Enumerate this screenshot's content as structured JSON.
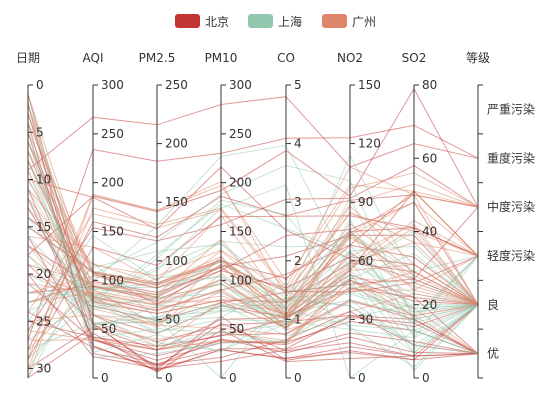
{
  "chart_data": {
    "type": "parallel",
    "legend": {
      "placement": "top-center",
      "items": [
        {
          "name": "北京",
          "color": "#c23531"
        },
        {
          "name": "上海",
          "color": "#91c7ae"
        },
        {
          "name": "广州",
          "color": "#dd8668"
        }
      ]
    },
    "axes": [
      {
        "name": "日期",
        "type": "value",
        "inverse": true,
        "range": [
          0,
          31
        ],
        "ticks": [
          0,
          5,
          10,
          15,
          20,
          25,
          30
        ]
      },
      {
        "name": "AQI",
        "type": "value",
        "range": [
          0,
          300
        ],
        "ticks": [
          0,
          50,
          100,
          150,
          200,
          250,
          300
        ]
      },
      {
        "name": "PM2.5",
        "type": "value",
        "range": [
          0,
          250
        ],
        "ticks": [
          0,
          50,
          100,
          150,
          200,
          250
        ]
      },
      {
        "name": "PM10",
        "type": "value",
        "range": [
          0,
          300
        ],
        "ticks": [
          0,
          50,
          100,
          150,
          200,
          250,
          300
        ]
      },
      {
        "name": "CO",
        "type": "value",
        "range": [
          0,
          5
        ],
        "ticks": [
          0,
          1,
          2,
          3,
          4,
          5
        ]
      },
      {
        "name": "NO2",
        "type": "value",
        "range": [
          0,
          150
        ],
        "ticks": [
          0,
          30,
          60,
          90,
          120,
          150
        ]
      },
      {
        "name": "SO2",
        "type": "value",
        "range": [
          0,
          80
        ],
        "ticks": [
          0,
          20,
          40,
          60,
          80
        ]
      },
      {
        "name": "等级",
        "type": "category",
        "categories": [
          "优",
          "良",
          "轻度污染",
          "中度污染",
          "重度污染",
          "严重污染"
        ]
      }
    ],
    "series": [
      {
        "name": "北京",
        "data": [
          [
            1,
            55,
            9,
            56,
            0.46,
            18,
            6,
            "良"
          ],
          [
            2,
            25,
            11,
            21,
            0.65,
            34,
            9,
            "优"
          ],
          [
            3,
            56,
            7,
            63,
            0.3,
            14,
            5,
            "良"
          ],
          [
            4,
            33,
            7,
            29,
            0.33,
            16,
            6,
            "优"
          ],
          [
            5,
            42,
            24,
            44,
            0.76,
            40,
            16,
            "优"
          ],
          [
            6,
            82,
            58,
            90,
            1.77,
            68,
            33,
            "良"
          ],
          [
            7,
            74,
            49,
            77,
            1.46,
            48,
            27,
            "良"
          ],
          [
            8,
            78,
            55,
            80,
            1.29,
            59,
            29,
            "良"
          ],
          [
            9,
            267,
            216,
            280,
            4.8,
            108,
            64,
            "重度污染"
          ],
          [
            10,
            185,
            127,
            216,
            2.52,
            61,
            27,
            "中度污染"
          ],
          [
            11,
            39,
            19,
            38,
            0.57,
            31,
            15,
            "优"
          ],
          [
            12,
            41,
            11,
            40,
            0.43,
            21,
            7,
            "优"
          ],
          [
            13,
            64,
            38,
            74,
            1.04,
            46,
            22,
            "良"
          ],
          [
            14,
            108,
            79,
            120,
            1.7,
            75,
            41,
            "轻度污染"
          ],
          [
            15,
            108,
            63,
            116,
            1.48,
            44,
            26,
            "轻度污染"
          ],
          [
            16,
            33,
            6,
            29,
            0.34,
            13,
            5,
            "优"
          ],
          [
            17,
            94,
            66,
            110,
            1.54,
            62,
            31,
            "良"
          ],
          [
            18,
            186,
            142,
            192,
            3.88,
            93,
            79,
            "中度污染"
          ],
          [
            19,
            57,
            31,
            54,
            0.96,
            32,
            14,
            "良"
          ],
          [
            20,
            22,
            8,
            17,
            0.48,
            23,
            10,
            "优"
          ],
          [
            21,
            39,
            15,
            36,
            0.61,
            29,
            13,
            "优"
          ],
          [
            22,
            94,
            69,
            114,
            2.08,
            73,
            39,
            "良"
          ],
          [
            23,
            99,
            73,
            110,
            2.43,
            76,
            48,
            "良"
          ],
          [
            24,
            31,
            12,
            30,
            0.5,
            32,
            16,
            "优"
          ],
          [
            25,
            42,
            27,
            43,
            1,
            53,
            22,
            "优"
          ],
          [
            26,
            154,
            117,
            157,
            3.05,
            92,
            58,
            "中度污染"
          ],
          [
            27,
            234,
            185,
            230,
            4.09,
            123,
            69,
            "重度污染"
          ],
          [
            28,
            160,
            120,
            186,
            2.77,
            91,
            50,
            "中度污染"
          ],
          [
            29,
            134,
            96,
            165,
            2.76,
            83,
            41,
            "轻度污染"
          ],
          [
            30,
            52,
            24,
            60,
            1.03,
            50,
            21,
            "良"
          ],
          [
            31,
            46,
            5,
            49,
            0.28,
            10,
            6,
            "优"
          ]
        ]
      },
      {
        "name": "上海",
        "data": [
          [
            1,
            26,
            37,
            27,
            1.163,
            27,
            13,
            "优"
          ],
          [
            2,
            85,
            62,
            71,
            1.195,
            60,
            8,
            "良"
          ],
          [
            3,
            78,
            38,
            74,
            1.363,
            37,
            7,
            "良"
          ],
          [
            4,
            21,
            21,
            36,
            0.634,
            40,
            9,
            "优"
          ],
          [
            5,
            41,
            42,
            46,
            0.915,
            81,
            13,
            "优"
          ],
          [
            6,
            56,
            52,
            69,
            1.067,
            92,
            16,
            "良"
          ],
          [
            7,
            64,
            30,
            28,
            0.924,
            51,
            2,
            "良"
          ],
          [
            8,
            55,
            48,
            74,
            1.236,
            75,
            26,
            "良"
          ],
          [
            9,
            76,
            85,
            113,
            1.237,
            114,
            27,
            "良"
          ],
          [
            10,
            91,
            81,
            104,
            1.041,
            56,
            40,
            "良"
          ],
          [
            11,
            84,
            39,
            60,
            0.964,
            25,
            11,
            "良"
          ],
          [
            12,
            64,
            51,
            101,
            0.862,
            58,
            23,
            "良"
          ],
          [
            13,
            70,
            69,
            120,
            1.198,
            65,
            36,
            "良"
          ],
          [
            14,
            77,
            105,
            178,
            2.549,
            64,
            16,
            "良"
          ],
          [
            15,
            109,
            68,
            87,
            0.996,
            74,
            29,
            "轻度污染"
          ],
          [
            16,
            73,
            68,
            97,
            0.905,
            51,
            34,
            "良"
          ],
          [
            17,
            54,
            27,
            47,
            0.592,
            53,
            12,
            "良"
          ],
          [
            18,
            51,
            61,
            97,
            0.811,
            65,
            19,
            "良"
          ],
          [
            19,
            91,
            71,
            121,
            1.374,
            43,
            18,
            "良"
          ],
          [
            20,
            73,
            102,
            182,
            2.787,
            44,
            19,
            "良"
          ],
          [
            21,
            73,
            50,
            76,
            0.717,
            31,
            20,
            "良"
          ],
          [
            22,
            84,
            94,
            140,
            2.238,
            68,
            18,
            "良"
          ],
          [
            23,
            93,
            77,
            104,
            1.165,
            53,
            7,
            "良"
          ],
          [
            24,
            99,
            130,
            227,
            3.97,
            55,
            15,
            "良"
          ],
          [
            25,
            146,
            84,
            139,
            1.094,
            40,
            17,
            "轻度污染"
          ],
          [
            26,
            113,
            108,
            137,
            1.481,
            48,
            15,
            "轻度污染"
          ],
          [
            27,
            81,
            48,
            62,
            1.619,
            26,
            3,
            "良"
          ],
          [
            28,
            56,
            48,
            68,
            1.336,
            37,
            9,
            "良"
          ],
          [
            29,
            82,
            92,
            174,
            3.29,
            0,
            13,
            "良"
          ],
          [
            30,
            106,
            116,
            188,
            3.628,
            101,
            16,
            "轻度污染"
          ],
          [
            31,
            118,
            50,
            0,
            1.383,
            76,
            11,
            "轻度污染"
          ]
        ]
      },
      {
        "name": "广州",
        "data": [
          [
            1,
            91,
            45,
            125,
            0.82,
            34,
            23,
            "良"
          ],
          [
            2,
            65,
            27,
            78,
            0.86,
            45,
            29,
            "良"
          ],
          [
            3,
            83,
            60,
            84,
            1.09,
            73,
            27,
            "良"
          ],
          [
            4,
            109,
            81,
            121,
            1.28,
            68,
            51,
            "轻度污染"
          ],
          [
            5,
            106,
            77,
            114,
            1.07,
            55,
            51,
            "轻度污染"
          ],
          [
            6,
            109,
            81,
            121,
            1.28,
            68,
            51,
            "轻度污染"
          ],
          [
            7,
            106,
            77,
            114,
            1.07,
            55,
            51,
            "轻度污染"
          ],
          [
            8,
            89,
            65,
            78,
            0.86,
            51,
            26,
            "良"
          ],
          [
            9,
            53,
            33,
            47,
            0.64,
            50,
            17,
            "良"
          ],
          [
            10,
            80,
            55,
            80,
            1.01,
            75,
            24,
            "良"
          ],
          [
            11,
            117,
            81,
            124,
            1.03,
            45,
            24,
            "轻度污染"
          ],
          [
            12,
            99,
            71,
            142,
            1.1,
            62,
            42,
            "良"
          ],
          [
            13,
            95,
            69,
            130,
            1.28,
            74,
            50,
            "良"
          ],
          [
            14,
            116,
            87,
            131,
            1.47,
            84,
            40,
            "轻度污染"
          ],
          [
            15,
            108,
            80,
            121,
            1.3,
            85,
            37,
            "轻度污染"
          ],
          [
            16,
            134,
            83,
            167,
            1.16,
            57,
            43,
            "轻度污染"
          ],
          [
            17,
            79,
            43,
            107,
            1.05,
            59,
            37,
            "良"
          ],
          [
            18,
            71,
            46,
            89,
            0.86,
            64,
            25,
            "良"
          ],
          [
            19,
            97,
            71,
            113,
            1.17,
            88,
            31,
            "良"
          ],
          [
            20,
            84,
            57,
            91,
            0.85,
            55,
            31,
            "良"
          ],
          [
            21,
            87,
            63,
            101,
            0.9,
            56,
            41,
            "良"
          ],
          [
            22,
            104,
            77,
            119,
            1.09,
            73,
            48,
            "轻度污染"
          ],
          [
            23,
            87,
            62,
            100,
            1,
            72,
            28,
            "良"
          ],
          [
            24,
            168,
            128,
            172,
            1.49,
            97,
            56,
            "中度污染"
          ],
          [
            25,
            65,
            45,
            51,
            0.74,
            39,
            17,
            "良"
          ],
          [
            26,
            39,
            24,
            38,
            0.61,
            47,
            17,
            "优"
          ],
          [
            27,
            39,
            24,
            39,
            0.59,
            50,
            19,
            "优"
          ],
          [
            28,
            93,
            68,
            96,
            1.05,
            79,
            29,
            "良"
          ],
          [
            29,
            188,
            143,
            197,
            1.66,
            99,
            51,
            "中度污染"
          ],
          [
            30,
            174,
            131,
            174,
            1.55,
            108,
            50,
            "中度污染"
          ],
          [
            31,
            187,
            143,
            201,
            1.39,
            89,
            53,
            "中度污染"
          ]
        ]
      }
    ]
  }
}
